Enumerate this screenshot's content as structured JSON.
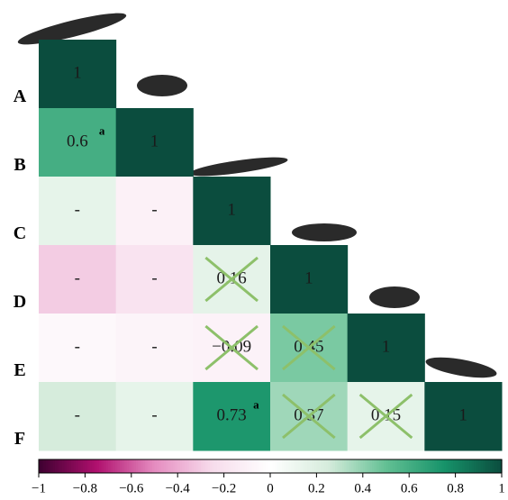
{
  "chart_data": {
    "type": "heatmap",
    "rows": [
      "A",
      "B",
      "C",
      "D",
      "E",
      "F"
    ],
    "values": [
      [
        1
      ],
      [
        0.6,
        1
      ],
      [
        0.15,
        -0.1,
        1
      ],
      [
        -0.3,
        -0.2,
        0.16,
        1
      ],
      [
        -0.05,
        -0.08,
        -0.09,
        0.45,
        1
      ],
      [
        0.25,
        0.15,
        0.73,
        0.37,
        0.15,
        1
      ]
    ],
    "value_labels": [
      [
        "1"
      ],
      [
        "0.6",
        "1"
      ],
      [
        "-",
        "-",
        "1"
      ],
      [
        "-",
        "-",
        "0.16",
        "1"
      ],
      [
        "-",
        "-",
        "−0.09",
        "0.45",
        "1"
      ],
      [
        "-",
        "-",
        "0.73",
        "0.37",
        "0.15",
        "1"
      ]
    ],
    "superscripts": [
      {
        "row": 1,
        "col": 0,
        "text": "a"
      },
      {
        "row": 5,
        "col": 2,
        "text": "a"
      }
    ],
    "crossed_cells": [
      [
        3,
        2
      ],
      [
        4,
        2
      ],
      [
        4,
        3
      ],
      [
        5,
        3
      ],
      [
        5,
        4
      ]
    ],
    "colormap": [
      "#3d0030",
      "#b0106e",
      "#e58cc0",
      "#f7dcec",
      "#ffffff",
      "#d6ecdc",
      "#63c094",
      "#17936a",
      "#0b4d3e"
    ],
    "cross_color": "#8dc06a",
    "clim": [
      -1,
      1
    ],
    "cticks": [
      {
        "value": -1,
        "label": "−1"
      },
      {
        "value": -0.8,
        "label": "−0.8"
      },
      {
        "value": -0.6,
        "label": "−0.6"
      },
      {
        "value": -0.4,
        "label": "−0.4"
      },
      {
        "value": -0.2,
        "label": "−0.2"
      },
      0,
      0.2,
      0.4,
      0.6,
      0.8,
      1
    ]
  }
}
